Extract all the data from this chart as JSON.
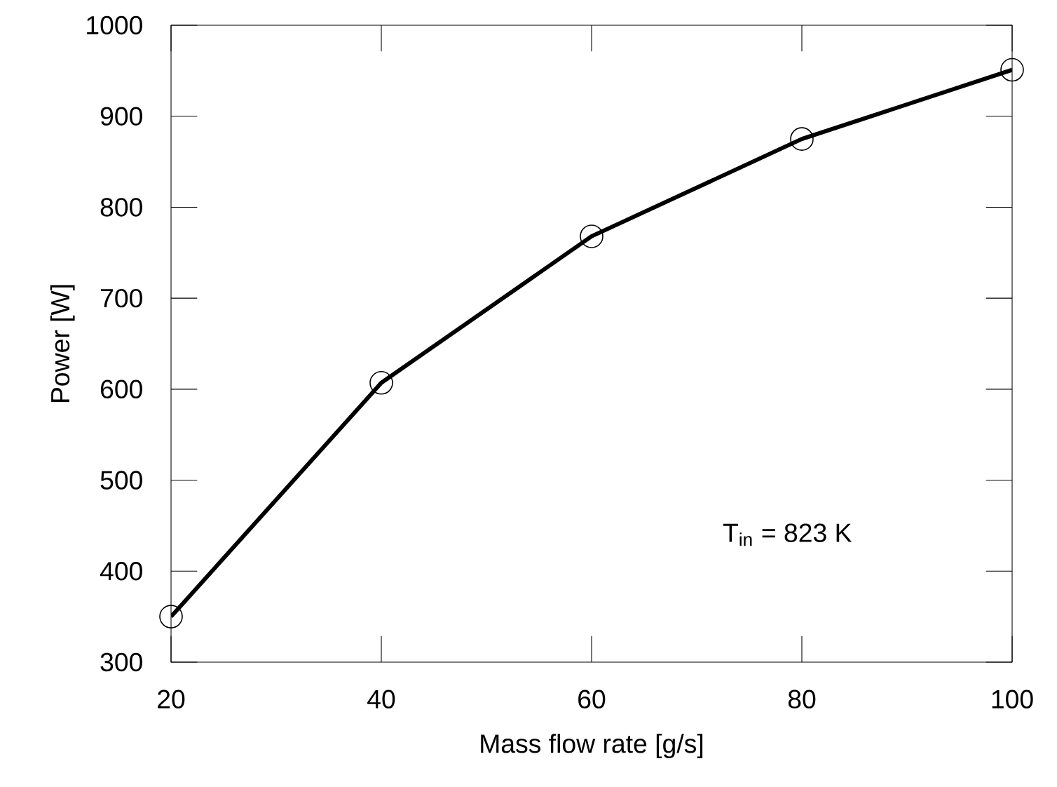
{
  "chart_data": {
    "type": "line",
    "xlabel": "Mass flow rate [g/s]",
    "ylabel": "Power [W]",
    "x": [
      20,
      40,
      60,
      80,
      100
    ],
    "series": [
      {
        "color": "#000000",
        "values": [
          350,
          607,
          768,
          875,
          951
        ]
      }
    ],
    "xlim": [
      20,
      100
    ],
    "xticks": [
      20,
      40,
      60,
      80,
      100
    ],
    "ylim": [
      300,
      1000
    ],
    "yticks": [
      300,
      400,
      500,
      600,
      700,
      800,
      900,
      1000
    ],
    "marker": "circle",
    "line_style": "solid",
    "annotations": [
      "T$_{in}$ = 823 K"
    ]
  }
}
